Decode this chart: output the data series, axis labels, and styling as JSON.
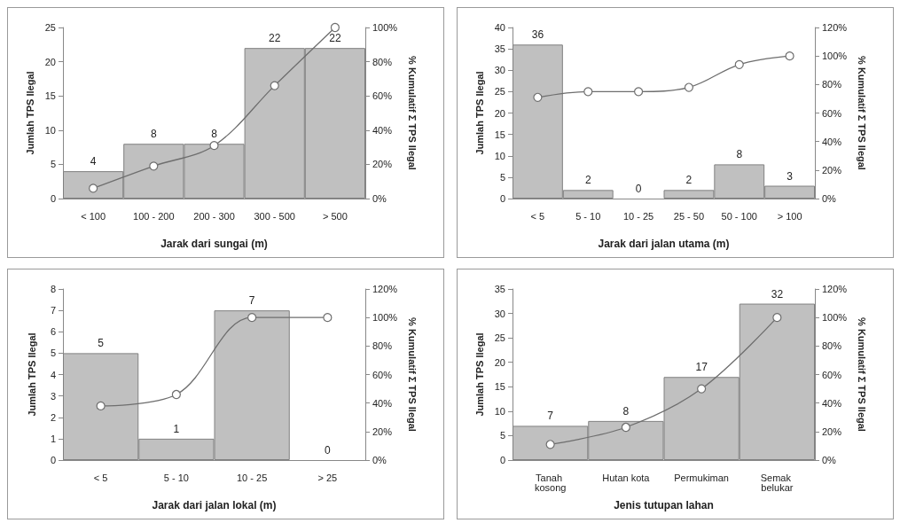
{
  "chart_data": [
    {
      "type": "bar",
      "xlabel": "Jarak dari sungai (m)",
      "ylabel": "Jumlah TPS Ilegal",
      "y2label": "% Kumulatif Σ TPS Ilegal",
      "categories": [
        "< 100",
        "100 - 200",
        "200 - 300",
        "300 - 500",
        "> 500"
      ],
      "series": [
        {
          "type": "bar",
          "color": "#c0c0c0",
          "values": [
            4,
            8,
            8,
            22,
            22
          ],
          "value_labels": [
            "4",
            "8",
            "8",
            "22",
            "22"
          ]
        },
        {
          "type": "line",
          "axis": "y2",
          "color": "#6e6e6e",
          "values": [
            6,
            19,
            31,
            66,
            100
          ]
        }
      ],
      "ylim": [
        0,
        25
      ],
      "yticks": [
        0,
        5,
        10,
        15,
        20,
        25
      ],
      "y2lim": [
        0,
        100
      ],
      "y2ticks": [
        {
          "value": 0,
          "label": "0%"
        },
        {
          "value": 20,
          "label": "20%"
        },
        {
          "value": 40,
          "label": "40%"
        },
        {
          "value": 60,
          "label": "60%"
        },
        {
          "value": 80,
          "label": "80%"
        },
        {
          "value": 100,
          "label": "100%"
        }
      ],
      "marker": "circle",
      "grid": false
    },
    {
      "type": "bar",
      "xlabel": "Jarak dari jalan utama (m)",
      "ylabel": "Jumlah TPS Ilegal",
      "y2label": "% Kumulatif Σ TPS Ilegal",
      "categories": [
        "< 5",
        "5 - 10",
        "10 - 25",
        "25 - 50",
        "50 - 100",
        "> 100"
      ],
      "series": [
        {
          "type": "bar",
          "color": "#c0c0c0",
          "values": [
            36,
            2,
            0,
            2,
            8,
            3
          ],
          "value_labels": [
            "36",
            "2",
            "0",
            "2",
            "8",
            "3"
          ]
        },
        {
          "type": "line",
          "axis": "y2",
          "color": "#6e6e6e",
          "values": [
            71,
            75,
            75,
            78,
            94,
            100
          ]
        }
      ],
      "ylim": [
        0,
        40
      ],
      "yticks": [
        0,
        5,
        10,
        15,
        20,
        25,
        30,
        35,
        40
      ],
      "y2lim": [
        0,
        120
      ],
      "y2ticks": [
        {
          "value": 0,
          "label": "0%"
        },
        {
          "value": 20,
          "label": "20%"
        },
        {
          "value": 40,
          "label": "40%"
        },
        {
          "value": 60,
          "label": "60%"
        },
        {
          "value": 80,
          "label": "80%"
        },
        {
          "value": 100,
          "label": "100%"
        },
        {
          "value": 120,
          "label": "120%"
        }
      ],
      "marker": "circle",
      "grid": false
    },
    {
      "type": "bar",
      "xlabel": "Jarak dari jalan lokal (m)",
      "ylabel": "Jumlah TPS Ilegal",
      "y2label": "% Kumulatif Σ TPS Ilegal",
      "categories": [
        "< 5",
        "5 - 10",
        "10 - 25",
        "> 25"
      ],
      "series": [
        {
          "type": "bar",
          "color": "#c0c0c0",
          "values": [
            5,
            1,
            7,
            0
          ],
          "value_labels": [
            "5",
            "1",
            "7",
            "0"
          ]
        },
        {
          "type": "line",
          "axis": "y2",
          "color": "#6e6e6e",
          "values": [
            38,
            46,
            100,
            100
          ]
        }
      ],
      "ylim": [
        0,
        8
      ],
      "yticks": [
        0,
        1,
        2,
        3,
        4,
        5,
        6,
        7,
        8
      ],
      "y2lim": [
        0,
        120
      ],
      "y2ticks": [
        {
          "value": 0,
          "label": "0%"
        },
        {
          "value": 20,
          "label": "20%"
        },
        {
          "value": 40,
          "label": "40%"
        },
        {
          "value": 60,
          "label": "60%"
        },
        {
          "value": 80,
          "label": "80%"
        },
        {
          "value": 100,
          "label": "100%"
        },
        {
          "value": 120,
          "label": "120%"
        }
      ],
      "marker": "circle",
      "grid": false
    },
    {
      "type": "bar",
      "xlabel": "Jenis tutupan lahan",
      "ylabel": "Jumlah TPS Ilegal",
      "y2label": "% Kumulatif Σ TPS Ilegal",
      "categories": [
        "Tanah kosong",
        "Hutan kota",
        "Permukiman",
        "Semak belukar"
      ],
      "series": [
        {
          "type": "bar",
          "color": "#c0c0c0",
          "values": [
            7,
            8,
            17,
            32
          ],
          "value_labels": [
            "7",
            "8",
            "17",
            "32"
          ]
        },
        {
          "type": "line",
          "axis": "y2",
          "color": "#6e6e6e",
          "values": [
            11,
            23,
            50,
            100
          ]
        }
      ],
      "ylim": [
        0,
        35
      ],
      "yticks": [
        0,
        5,
        10,
        15,
        20,
        25,
        30,
        35
      ],
      "y2lim": [
        0,
        120
      ],
      "y2ticks": [
        {
          "value": 0,
          "label": "0%"
        },
        {
          "value": 20,
          "label": "20%"
        },
        {
          "value": 40,
          "label": "40%"
        },
        {
          "value": 60,
          "label": "60%"
        },
        {
          "value": 80,
          "label": "80%"
        },
        {
          "value": 100,
          "label": "100%"
        },
        {
          "value": 120,
          "label": "120%"
        }
      ],
      "marker": "circle",
      "grid": false
    }
  ]
}
